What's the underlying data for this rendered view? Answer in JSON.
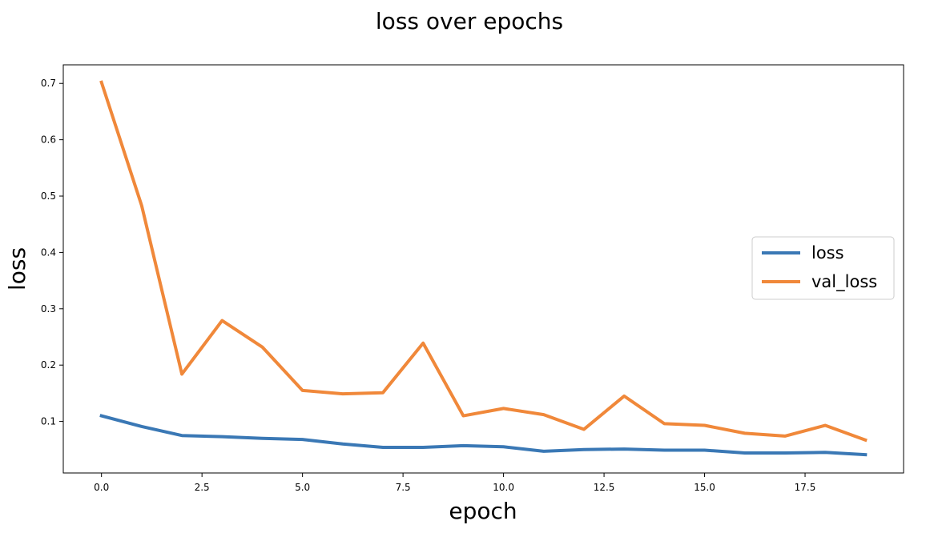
{
  "chart_data": {
    "type": "line",
    "title": "loss over epochs",
    "xlabel": "epoch",
    "ylabel": "loss",
    "xlim": [
      -0.95,
      19.95
    ],
    "ylim": [
      0.0085,
      0.733
    ],
    "xticks": [
      0.0,
      2.5,
      5.0,
      7.5,
      10.0,
      12.5,
      15.0,
      17.5
    ],
    "xtick_labels": [
      "0.0",
      "2.5",
      "5.0",
      "7.5",
      "10.0",
      "12.5",
      "15.0",
      "17.5"
    ],
    "yticks": [
      0.1,
      0.2,
      0.3,
      0.4,
      0.5,
      0.6,
      0.7
    ],
    "ytick_labels": [
      "0.1",
      "0.2",
      "0.3",
      "0.4",
      "0.5",
      "0.6",
      "0.7"
    ],
    "grid": false,
    "legend_position": "right",
    "x": [
      0,
      1,
      2,
      3,
      4,
      5,
      6,
      7,
      8,
      9,
      10,
      11,
      12,
      13,
      14,
      15,
      16,
      17,
      18,
      19
    ],
    "series": [
      {
        "name": "loss",
        "color": "#3a78b5",
        "values": [
          0.11,
          0.091,
          0.075,
          0.073,
          0.07,
          0.068,
          0.06,
          0.054,
          0.054,
          0.057,
          0.055,
          0.047,
          0.05,
          0.051,
          0.049,
          0.049,
          0.044,
          0.044,
          0.045,
          0.041
        ]
      },
      {
        "name": "val_loss",
        "color": "#f0883a",
        "values": [
          0.702,
          0.483,
          0.184,
          0.279,
          0.232,
          0.155,
          0.149,
          0.151,
          0.239,
          0.11,
          0.123,
          0.112,
          0.086,
          0.145,
          0.096,
          0.093,
          0.079,
          0.074,
          0.093,
          0.067
        ]
      }
    ]
  }
}
